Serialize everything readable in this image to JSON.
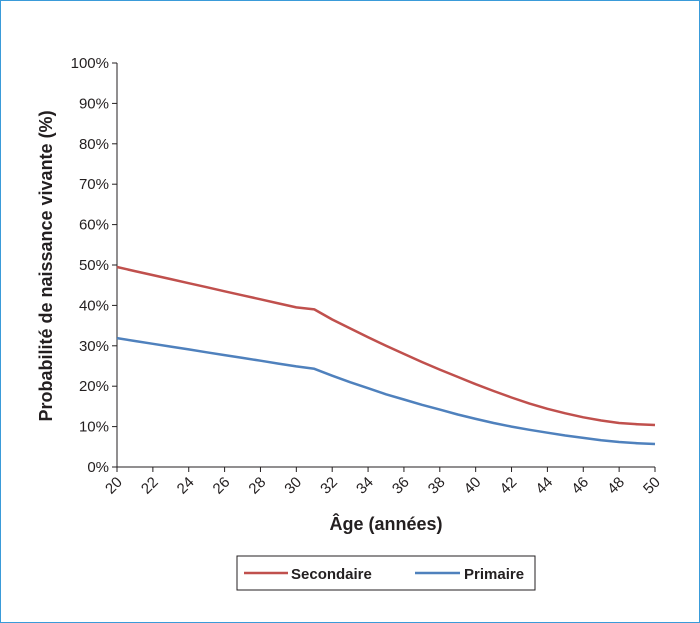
{
  "chart_data": {
    "type": "line",
    "xlabel": "Âge (années)",
    "ylabel": "Probabilité de naissance vivante (%)",
    "xlim": [
      20,
      50
    ],
    "ylim": [
      0,
      100
    ],
    "x_ticks": [
      "20",
      "22",
      "24",
      "26",
      "28",
      "30",
      "32",
      "34",
      "36",
      "38",
      "40",
      "42",
      "44",
      "46",
      "48",
      "50"
    ],
    "y_ticks": [
      "0%",
      "10%",
      "20%",
      "30%",
      "40%",
      "50%",
      "60%",
      "70%",
      "80%",
      "90%",
      "100%"
    ],
    "grid": false,
    "legend_position": "bottom",
    "x": [
      20,
      21,
      22,
      23,
      24,
      25,
      26,
      27,
      28,
      29,
      30,
      31,
      32,
      33,
      34,
      35,
      36,
      37,
      38,
      39,
      40,
      41,
      42,
      43,
      44,
      45,
      46,
      47,
      48,
      49,
      50
    ],
    "series": [
      {
        "name": "Secondaire",
        "color": "#c0504d",
        "values": [
          49.5,
          48.5,
          47.5,
          46.5,
          45.5,
          44.5,
          43.5,
          42.5,
          41.5,
          40.5,
          39.5,
          39.0,
          36.5,
          34.3,
          32.1,
          30.0,
          28.0,
          26.0,
          24.1,
          22.3,
          20.5,
          18.8,
          17.2,
          15.7,
          14.4,
          13.3,
          12.3,
          11.5,
          10.9,
          10.6,
          10.4
        ]
      },
      {
        "name": "Primaire",
        "color": "#4f81bd",
        "values": [
          31.9,
          31.2,
          30.5,
          29.8,
          29.1,
          28.4,
          27.7,
          27.0,
          26.3,
          25.6,
          24.9,
          24.3,
          22.6,
          21.0,
          19.5,
          18.0,
          16.7,
          15.4,
          14.2,
          13.0,
          11.9,
          10.9,
          10.0,
          9.2,
          8.5,
          7.8,
          7.2,
          6.6,
          6.2,
          5.9,
          5.7
        ]
      }
    ]
  }
}
